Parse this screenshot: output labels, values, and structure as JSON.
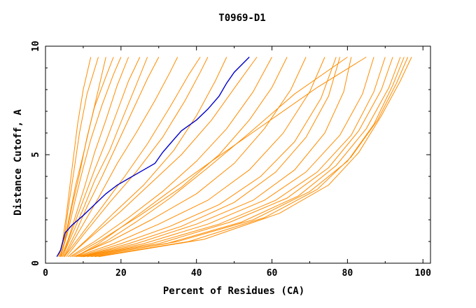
{
  "chart_data": {
    "type": "line",
    "title": "T0969-D1",
    "xlabel": "Percent of Residues (CA)",
    "ylabel": "Distance Cutoff, A",
    "xlim": [
      0,
      102
    ],
    "ylim": [
      0,
      10
    ],
    "x_ticks": [
      "0",
      "20",
      "40",
      "60",
      "80",
      "100"
    ],
    "y_ticks": [
      "0",
      "5",
      "10"
    ],
    "grid": false,
    "legend": "none",
    "colors": {
      "models": "#ff8c00",
      "highlight": "#0000cd"
    },
    "highlight_series": [
      [
        3,
        0.3
      ],
      [
        4,
        0.6
      ],
      [
        4.6,
        1.0
      ],
      [
        5.2,
        1.4
      ],
      [
        7,
        1.75
      ],
      [
        10,
        2.2
      ],
      [
        13,
        2.7
      ],
      [
        16,
        3.2
      ],
      [
        19,
        3.6
      ],
      [
        22,
        3.9
      ],
      [
        26,
        4.3
      ],
      [
        29,
        4.6
      ],
      [
        31,
        5.1
      ],
      [
        33,
        5.5
      ],
      [
        36,
        6.1
      ],
      [
        40,
        6.6
      ],
      [
        43,
        7.1
      ],
      [
        46,
        7.7
      ],
      [
        48,
        8.3
      ],
      [
        50,
        8.8
      ],
      [
        54,
        9.5
      ]
    ],
    "series": [
      [
        [
          3.5,
          0.3
        ],
        [
          4.5,
          1
        ],
        [
          5.5,
          2.2
        ],
        [
          6.5,
          3.6
        ],
        [
          7.5,
          5
        ],
        [
          8.5,
          6.4
        ],
        [
          10,
          8
        ],
        [
          12,
          9.5
        ]
      ],
      [
        [
          3.5,
          0.3
        ],
        [
          5,
          1.2
        ],
        [
          6,
          2.5
        ],
        [
          7.5,
          4.2
        ],
        [
          9,
          6
        ],
        [
          11,
          7.8
        ],
        [
          14,
          9.5
        ]
      ],
      [
        [
          3.8,
          0.3
        ],
        [
          5,
          1
        ],
        [
          6.5,
          2.3
        ],
        [
          8,
          3.6
        ],
        [
          10,
          5
        ],
        [
          12,
          6.5
        ],
        [
          14,
          8
        ],
        [
          16,
          9.5
        ]
      ],
      [
        [
          4,
          0.3
        ],
        [
          5.5,
          1.3
        ],
        [
          7,
          2.6
        ],
        [
          9,
          4.1
        ],
        [
          11,
          5.8
        ],
        [
          13,
          7.2
        ],
        [
          16,
          8.6
        ],
        [
          18,
          9.5
        ]
      ],
      [
        [
          4,
          0.3
        ],
        [
          6,
          1.5
        ],
        [
          8,
          3
        ],
        [
          10,
          4.4
        ],
        [
          12,
          5.7
        ],
        [
          15,
          7.3
        ],
        [
          18,
          8.7
        ],
        [
          20,
          9.5
        ]
      ],
      [
        [
          4.2,
          0.3
        ],
        [
          6,
          1.1
        ],
        [
          8,
          2.2
        ],
        [
          10.5,
          3.6
        ],
        [
          13,
          5.1
        ],
        [
          16,
          6.6
        ],
        [
          19,
          8.2
        ],
        [
          22,
          9.5
        ]
      ],
      [
        [
          4.5,
          0.3
        ],
        [
          7,
          1.5
        ],
        [
          10,
          2.9
        ],
        [
          13,
          4.3
        ],
        [
          16,
          5.6
        ],
        [
          19,
          7
        ],
        [
          22,
          8.4
        ],
        [
          25,
          9.5
        ]
      ],
      [
        [
          4.5,
          0.3
        ],
        [
          7,
          1.3
        ],
        [
          10,
          2.5
        ],
        [
          13,
          3.8
        ],
        [
          17,
          5.2
        ],
        [
          20,
          6.5
        ],
        [
          24,
          8.2
        ],
        [
          27,
          9.5
        ]
      ],
      [
        [
          4.8,
          0.3
        ],
        [
          8,
          1.4
        ],
        [
          11,
          2.6
        ],
        [
          15,
          4
        ],
        [
          19,
          5.5
        ],
        [
          23,
          7
        ],
        [
          27,
          8.5
        ],
        [
          30,
          9.5
        ]
      ],
      [
        [
          5,
          0.3
        ],
        [
          9,
          1.5
        ],
        [
          14,
          3
        ],
        [
          19,
          4.6
        ],
        [
          24,
          6
        ],
        [
          29,
          7.5
        ],
        [
          33,
          8.8
        ],
        [
          35,
          9.5
        ]
      ],
      [
        [
          5,
          0.3
        ],
        [
          9,
          1.2
        ],
        [
          15,
          2.6
        ],
        [
          21,
          4
        ],
        [
          27,
          5.5
        ],
        [
          33,
          7.2
        ],
        [
          38,
          8.7
        ],
        [
          41,
          9.5
        ]
      ],
      [
        [
          5.5,
          0.3
        ],
        [
          10,
          1.3
        ],
        [
          17,
          2.8
        ],
        [
          24,
          4.2
        ],
        [
          31,
          5.8
        ],
        [
          37,
          7.5
        ],
        [
          41,
          8.8
        ],
        [
          43,
          9.5
        ]
      ],
      [
        [
          6,
          0.3
        ],
        [
          11,
          1.1
        ],
        [
          18,
          2.3
        ],
        [
          26,
          3.6
        ],
        [
          34,
          5.2
        ],
        [
          40,
          6.8
        ],
        [
          45,
          8.4
        ],
        [
          48,
          9.5
        ]
      ],
      [
        [
          6,
          0.3
        ],
        [
          12,
          1.2
        ],
        [
          20,
          2.4
        ],
        [
          28,
          3.7
        ],
        [
          36,
          5
        ],
        [
          44,
          6.6
        ],
        [
          51,
          8.3
        ],
        [
          56,
          9.5
        ]
      ],
      [
        [
          6.5,
          0.3
        ],
        [
          13,
          1
        ],
        [
          22,
          2.1
        ],
        [
          31,
          3.3
        ],
        [
          40,
          4.7
        ],
        [
          48,
          6.2
        ],
        [
          55,
          7.9
        ],
        [
          60,
          9.5
        ]
      ],
      [
        [
          7,
          0.3
        ],
        [
          15,
          1.1
        ],
        [
          25,
          2.2
        ],
        [
          36,
          3.5
        ],
        [
          46,
          5
        ],
        [
          54,
          6.6
        ],
        [
          60,
          8.1
        ],
        [
          64,
          9.5
        ]
      ],
      [
        [
          7.5,
          0.3
        ],
        [
          17,
          1
        ],
        [
          28,
          2
        ],
        [
          40,
          3.2
        ],
        [
          50,
          4.6
        ],
        [
          58,
          6.2
        ],
        [
          65,
          8
        ],
        [
          69,
          9.5
        ]
      ],
      [
        [
          8,
          0.3
        ],
        [
          18,
          0.9
        ],
        [
          30,
          1.8
        ],
        [
          43,
          2.9
        ],
        [
          54,
          4.3
        ],
        [
          63,
          6
        ],
        [
          70,
          7.9
        ],
        [
          74,
          9.5
        ]
      ],
      [
        [
          8.5,
          0.3
        ],
        [
          20,
          0.9
        ],
        [
          33,
          1.7
        ],
        [
          46,
          2.7
        ],
        [
          57,
          4
        ],
        [
          66,
          5.6
        ],
        [
          73,
          7.6
        ],
        [
          77,
          9.5
        ]
      ],
      [
        [
          9,
          0.3
        ],
        [
          22,
          0.9
        ],
        [
          36,
          1.7
        ],
        [
          50,
          2.8
        ],
        [
          61,
          4.2
        ],
        [
          69,
          5.8
        ],
        [
          75,
          7.7
        ],
        [
          78,
          9.5
        ]
      ],
      [
        [
          9,
          0.3
        ],
        [
          24,
          0.9
        ],
        [
          40,
          1.8
        ],
        [
          55,
          2.9
        ],
        [
          66,
          4.3
        ],
        [
          74,
          6
        ],
        [
          79,
          7.9
        ],
        [
          81,
          9.5
        ]
      ],
      [
        [
          9.5,
          0.3
        ],
        [
          26,
          0.9
        ],
        [
          43,
          1.8
        ],
        [
          58,
          2.9
        ],
        [
          69,
          4.2
        ],
        [
          78,
          5.9
        ],
        [
          84,
          7.8
        ],
        [
          87,
          9.5
        ]
      ],
      [
        [
          10,
          0.3
        ],
        [
          28,
          0.9
        ],
        [
          46,
          1.8
        ],
        [
          61,
          2.9
        ],
        [
          72,
          4.2
        ],
        [
          81,
          5.9
        ],
        [
          87,
          7.9
        ],
        [
          90,
          9.5
        ]
      ],
      [
        [
          10,
          0.3
        ],
        [
          30,
          0.9
        ],
        [
          49,
          1.9
        ],
        [
          64,
          3
        ],
        [
          75,
          4.4
        ],
        [
          83,
          6.1
        ],
        [
          89,
          8
        ],
        [
          92,
          9.5
        ]
      ],
      [
        [
          11,
          0.3
        ],
        [
          32,
          0.9
        ],
        [
          52,
          1.9
        ],
        [
          67,
          3.1
        ],
        [
          77,
          4.5
        ],
        [
          85,
          6.2
        ],
        [
          91,
          8.1
        ],
        [
          94,
          9.5
        ]
      ],
      [
        [
          12,
          0.3
        ],
        [
          35,
          1
        ],
        [
          55,
          2
        ],
        [
          70,
          3.3
        ],
        [
          80,
          4.7
        ],
        [
          87,
          6.4
        ],
        [
          92,
          8.2
        ],
        [
          95,
          9.5
        ]
      ],
      [
        [
          13,
          0.3
        ],
        [
          38,
          1
        ],
        [
          58,
          2.1
        ],
        [
          72,
          3.4
        ],
        [
          81,
          4.9
        ],
        [
          88,
          6.6
        ],
        [
          93,
          8.3
        ],
        [
          96,
          9.5
        ]
      ],
      [
        [
          14,
          0.3
        ],
        [
          42,
          1.1
        ],
        [
          62,
          2.3
        ],
        [
          75,
          3.6
        ],
        [
          83,
          5.1
        ],
        [
          89,
          6.8
        ],
        [
          94,
          8.4
        ],
        [
          97,
          9.5
        ]
      ],
      [
        [
          8,
          0.3
        ],
        [
          16,
          1
        ],
        [
          24,
          1.9
        ],
        [
          33,
          3
        ],
        [
          43,
          4.4
        ],
        [
          54,
          6
        ],
        [
          66,
          7.8
        ],
        [
          80,
          9.5
        ]
      ],
      [
        [
          8,
          0.3
        ],
        [
          14,
          0.9
        ],
        [
          22,
          1.9
        ],
        [
          32,
          3.2
        ],
        [
          44,
          4.7
        ],
        [
          58,
          6.4
        ],
        [
          72,
          8.1
        ],
        [
          85,
          9.5
        ]
      ]
    ]
  }
}
